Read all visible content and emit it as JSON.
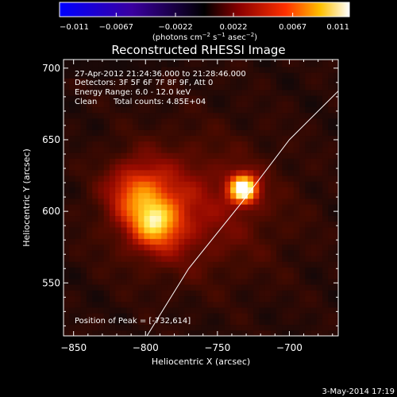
{
  "chart_data": {
    "type": "heatmap",
    "title": "Reconstructed RHESSI Image",
    "xlabel": "Heliocentric X (arcsec)",
    "ylabel": "Heliocentric Y (arcsec)",
    "xlim": [
      -857,
      -666
    ],
    "ylim": [
      513,
      706
    ],
    "x_ticks": [
      -850,
      -800,
      -750,
      -700
    ],
    "y_ticks": [
      550,
      600,
      650,
      700
    ],
    "colorbar": {
      "range": [
        -0.011,
        0.011
      ],
      "ticks": [
        -0.011,
        -0.0067,
        -0.0022,
        0.0022,
        0.0067,
        0.011
      ],
      "tick_labels": [
        "−0.011",
        "−0.0067",
        "−0.0022",
        "0.0022",
        "0.0067",
        "0.011"
      ],
      "units_prefix": "(photons cm",
      "units_exp1": "−2",
      "units_mid": " s",
      "units_exp2": "−1",
      "units_end": " asec",
      "units_exp3": "−2",
      "units_close": ")"
    },
    "sources": [
      {
        "x": -734,
        "y": 614,
        "peak": 0.011
      },
      {
        "x": -795,
        "y": 590,
        "peak": 0.0055
      },
      {
        "x": -807,
        "y": 612,
        "peak": 0.004
      }
    ],
    "limb_curve": [
      [
        -799,
        513
      ],
      [
        -770,
        560
      ],
      [
        -734,
        605
      ],
      [
        -700,
        650
      ],
      [
        -666,
        684
      ]
    ],
    "annotations": {
      "time_range": "27-Apr-2012 21:24:36.000 to 21:28:46.000",
      "detectors": "Detectors: 3F 5F 6F 7F 8F 9F, Att 0",
      "energy": "Energy Range: 6.0 - 12.0 keV",
      "clean": "Clean",
      "counts": "Total counts: 4.85E+04",
      "peak": "Position of Peak = [-732,614]"
    },
    "date_stamp": "3-May-2014 17:19"
  }
}
